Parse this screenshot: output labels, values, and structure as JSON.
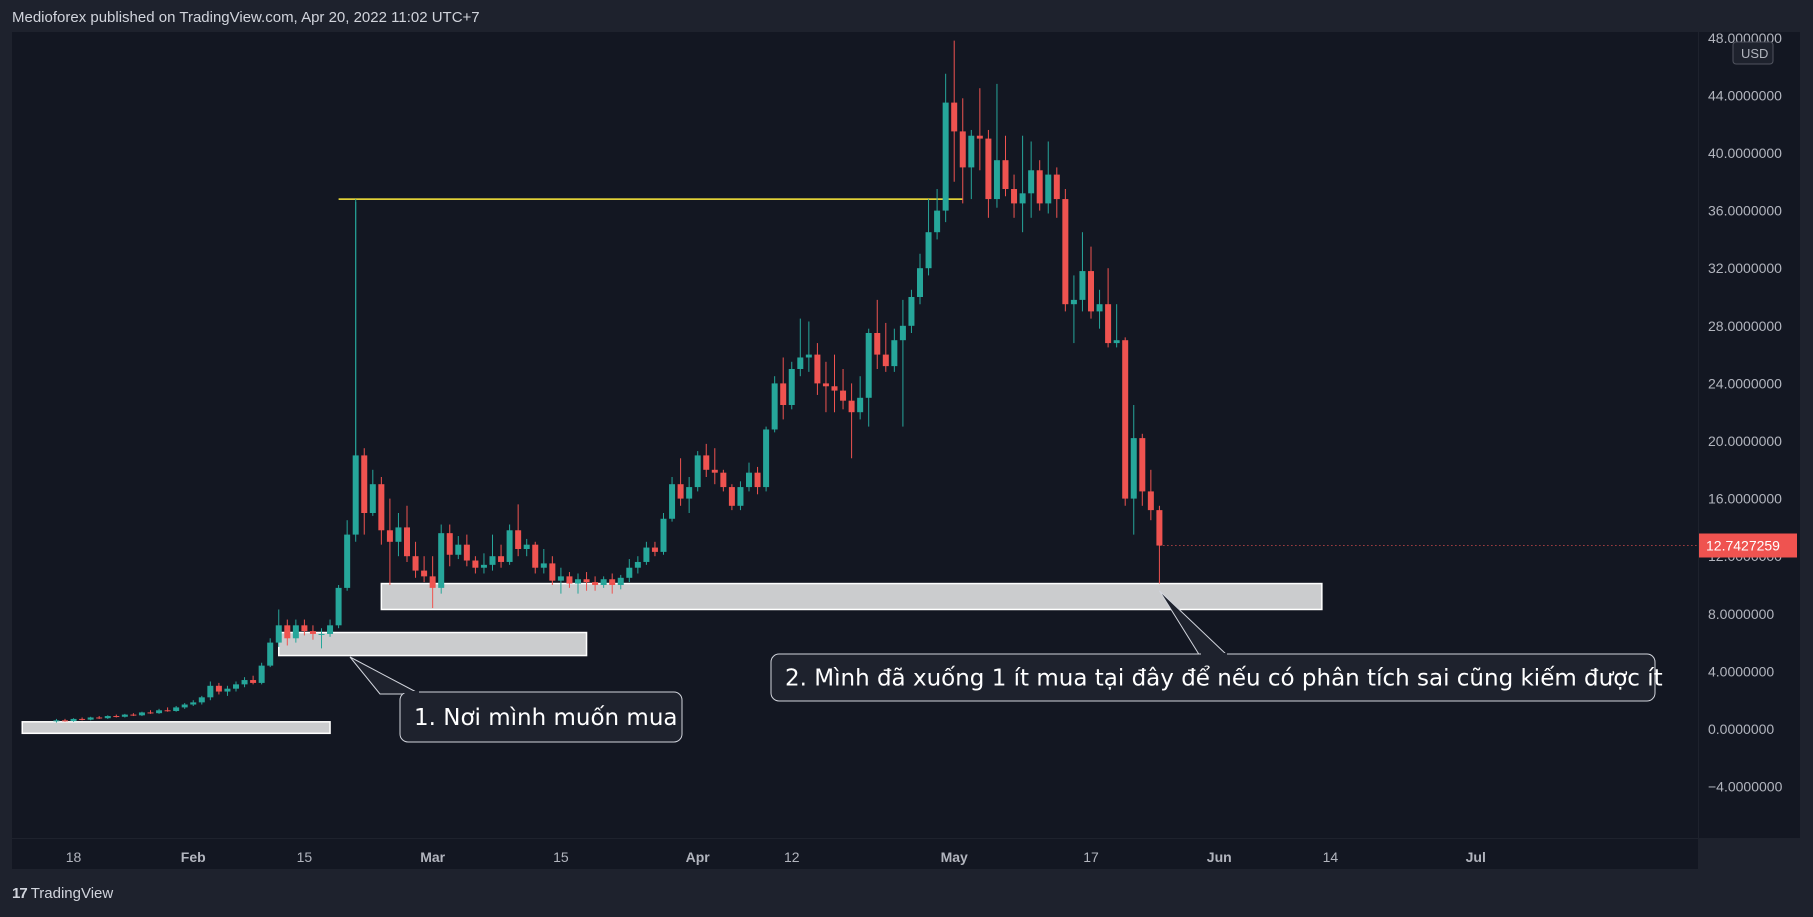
{
  "header": {
    "publisher_line": "Medioforex published on TradingView.com, Apr 20, 2022 11:02 UTC+7"
  },
  "footer": {
    "logo_glyph": "17",
    "brand": "TradingView"
  },
  "colors": {
    "up": "#26a69a",
    "down": "#ef5350",
    "level_line": "#ffeb3b",
    "price_tag": "#ef5350",
    "background": "#131722",
    "panel": "#1e222d"
  },
  "chart_data": {
    "type": "candlestick",
    "currency": "USD",
    "current_price_label": "12.7427259",
    "current_price": 12.7427259,
    "ylim": [
      -8,
      48
    ],
    "y_ticks": [
      {
        "v": 48,
        "label": "48.0000000"
      },
      {
        "v": 44,
        "label": "44.0000000"
      },
      {
        "v": 40,
        "label": "40.0000000"
      },
      {
        "v": 36,
        "label": "36.0000000"
      },
      {
        "v": 32,
        "label": "32.0000000"
      },
      {
        "v": 28,
        "label": "28.0000000"
      },
      {
        "v": 24,
        "label": "24.0000000"
      },
      {
        "v": 20,
        "label": "20.0000000"
      },
      {
        "v": 16,
        "label": "16.0000000"
      },
      {
        "v": 12,
        "label": "12.0000000"
      },
      {
        "v": 8,
        "label": "8.0000000"
      },
      {
        "v": 4,
        "label": "4.0000000"
      },
      {
        "v": 0,
        "label": "0.0000000"
      },
      {
        "v": -4,
        "label": "−4.0000000"
      }
    ],
    "x_ticks": [
      {
        "day": -12,
        "label": "18"
      },
      {
        "day": 2,
        "label": "Feb"
      },
      {
        "day": 15,
        "label": "15"
      },
      {
        "day": 30,
        "label": "Mar"
      },
      {
        "day": 45,
        "label": "15"
      },
      {
        "day": 61,
        "label": "Apr"
      },
      {
        "day": 72,
        "label": "12"
      },
      {
        "day": 91,
        "label": "May"
      },
      {
        "day": 107,
        "label": "17"
      },
      {
        "day": 122,
        "label": "Jun"
      },
      {
        "day": 135,
        "label": "14"
      },
      {
        "day": 152,
        "label": "Jul"
      }
    ],
    "xlim": [
      -18,
      155
    ],
    "candles": [
      {
        "d": -14,
        "o": 0.55,
        "h": 0.7,
        "l": 0.45,
        "c": 0.6
      },
      {
        "d": -13,
        "o": 0.6,
        "h": 0.7,
        "l": 0.5,
        "c": 0.55
      },
      {
        "d": -12,
        "o": 0.55,
        "h": 0.75,
        "l": 0.5,
        "c": 0.7
      },
      {
        "d": -11,
        "o": 0.7,
        "h": 0.8,
        "l": 0.6,
        "c": 0.65
      },
      {
        "d": -10,
        "o": 0.65,
        "h": 0.85,
        "l": 0.6,
        "c": 0.8
      },
      {
        "d": -9,
        "o": 0.8,
        "h": 0.9,
        "l": 0.7,
        "c": 0.75
      },
      {
        "d": -8,
        "o": 0.75,
        "h": 0.95,
        "l": 0.7,
        "c": 0.9
      },
      {
        "d": -7,
        "o": 0.9,
        "h": 1.0,
        "l": 0.8,
        "c": 0.85
      },
      {
        "d": -6,
        "o": 0.85,
        "h": 1.05,
        "l": 0.8,
        "c": 1.0
      },
      {
        "d": -5,
        "o": 1.0,
        "h": 1.1,
        "l": 0.9,
        "c": 0.95
      },
      {
        "d": -4,
        "o": 0.95,
        "h": 1.2,
        "l": 0.9,
        "c": 1.15
      },
      {
        "d": -3,
        "o": 1.15,
        "h": 1.3,
        "l": 1.05,
        "c": 1.1
      },
      {
        "d": -2,
        "o": 1.1,
        "h": 1.4,
        "l": 1.05,
        "c": 1.3
      },
      {
        "d": -1,
        "o": 1.3,
        "h": 1.5,
        "l": 1.2,
        "c": 1.25
      },
      {
        "d": 0,
        "o": 1.25,
        "h": 1.6,
        "l": 1.2,
        "c": 1.5
      },
      {
        "d": 1,
        "o": 1.5,
        "h": 1.8,
        "l": 1.4,
        "c": 1.7
      },
      {
        "d": 2,
        "o": 1.7,
        "h": 2.0,
        "l": 1.6,
        "c": 1.85
      },
      {
        "d": 3,
        "o": 1.85,
        "h": 2.3,
        "l": 1.7,
        "c": 2.2
      },
      {
        "d": 4,
        "o": 2.2,
        "h": 3.3,
        "l": 2.0,
        "c": 3.0
      },
      {
        "d": 5,
        "o": 3.0,
        "h": 3.2,
        "l": 2.4,
        "c": 2.6
      },
      {
        "d": 6,
        "o": 2.6,
        "h": 3.0,
        "l": 2.3,
        "c": 2.8
      },
      {
        "d": 7,
        "o": 2.8,
        "h": 3.3,
        "l": 2.6,
        "c": 3.1
      },
      {
        "d": 8,
        "o": 3.1,
        "h": 3.6,
        "l": 2.9,
        "c": 3.4
      },
      {
        "d": 9,
        "o": 3.4,
        "h": 3.7,
        "l": 3.1,
        "c": 3.2
      },
      {
        "d": 10,
        "o": 3.2,
        "h": 4.6,
        "l": 3.1,
        "c": 4.4
      },
      {
        "d": 11,
        "o": 4.4,
        "h": 6.3,
        "l": 4.3,
        "c": 6.0
      },
      {
        "d": 12,
        "o": 6.0,
        "h": 8.3,
        "l": 5.7,
        "c": 7.2
      },
      {
        "d": 13,
        "o": 7.2,
        "h": 7.6,
        "l": 5.8,
        "c": 6.3
      },
      {
        "d": 14,
        "o": 6.3,
        "h": 7.6,
        "l": 6.0,
        "c": 7.2
      },
      {
        "d": 15,
        "o": 7.2,
        "h": 7.6,
        "l": 6.5,
        "c": 6.8
      },
      {
        "d": 16,
        "o": 6.8,
        "h": 7.2,
        "l": 6.2,
        "c": 6.6
      },
      {
        "d": 17,
        "o": 6.6,
        "h": 7.0,
        "l": 5.6,
        "c": 6.6
      },
      {
        "d": 18,
        "o": 6.6,
        "h": 7.6,
        "l": 6.4,
        "c": 7.2
      },
      {
        "d": 19,
        "o": 7.2,
        "h": 10.0,
        "l": 7.0,
        "c": 9.8
      },
      {
        "d": 20,
        "o": 9.8,
        "h": 14.5,
        "l": 9.6,
        "c": 13.5
      },
      {
        "d": 21,
        "o": 13.5,
        "h": 36.6,
        "l": 13.0,
        "c": 19.0
      },
      {
        "d": 22,
        "o": 19.0,
        "h": 19.5,
        "l": 13.5,
        "c": 15.0
      },
      {
        "d": 23,
        "o": 15.0,
        "h": 18.0,
        "l": 14.8,
        "c": 17.0
      },
      {
        "d": 24,
        "o": 17.0,
        "h": 17.5,
        "l": 12.8,
        "c": 13.8
      },
      {
        "d": 25,
        "o": 13.8,
        "h": 16.0,
        "l": 10.0,
        "c": 13.0
      },
      {
        "d": 26,
        "o": 13.0,
        "h": 15.0,
        "l": 12.0,
        "c": 14.0
      },
      {
        "d": 27,
        "o": 14.0,
        "h": 15.5,
        "l": 11.6,
        "c": 12.0
      },
      {
        "d": 28,
        "o": 12.0,
        "h": 13.0,
        "l": 10.5,
        "c": 11.0
      },
      {
        "d": 29,
        "o": 11.0,
        "h": 12.0,
        "l": 10.2,
        "c": 10.6
      },
      {
        "d": 30,
        "o": 10.6,
        "h": 12.0,
        "l": 8.4,
        "c": 9.8
      },
      {
        "d": 31,
        "o": 9.8,
        "h": 14.2,
        "l": 9.4,
        "c": 13.6
      },
      {
        "d": 32,
        "o": 13.6,
        "h": 14.2,
        "l": 11.3,
        "c": 12.1
      },
      {
        "d": 33,
        "o": 12.1,
        "h": 13.4,
        "l": 11.8,
        "c": 12.8
      },
      {
        "d": 34,
        "o": 12.8,
        "h": 13.5,
        "l": 11.3,
        "c": 11.7
      },
      {
        "d": 35,
        "o": 11.7,
        "h": 12.0,
        "l": 10.8,
        "c": 11.2
      },
      {
        "d": 36,
        "o": 11.2,
        "h": 12.2,
        "l": 10.8,
        "c": 11.4
      },
      {
        "d": 37,
        "o": 11.4,
        "h": 13.5,
        "l": 11.0,
        "c": 12.0
      },
      {
        "d": 38,
        "o": 12.0,
        "h": 12.8,
        "l": 11.2,
        "c": 11.6
      },
      {
        "d": 39,
        "o": 11.6,
        "h": 14.2,
        "l": 11.4,
        "c": 13.8
      },
      {
        "d": 40,
        "o": 13.8,
        "h": 15.6,
        "l": 12.0,
        "c": 12.5
      },
      {
        "d": 41,
        "o": 12.5,
        "h": 13.2,
        "l": 12.0,
        "c": 12.8
      },
      {
        "d": 42,
        "o": 12.8,
        "h": 13.0,
        "l": 10.8,
        "c": 11.2
      },
      {
        "d": 43,
        "o": 11.2,
        "h": 12.5,
        "l": 10.8,
        "c": 11.5
      },
      {
        "d": 44,
        "o": 11.5,
        "h": 12.0,
        "l": 10.0,
        "c": 10.3
      },
      {
        "d": 45,
        "o": 10.3,
        "h": 11.2,
        "l": 9.4,
        "c": 10.6
      },
      {
        "d": 46,
        "o": 10.6,
        "h": 10.9,
        "l": 9.8,
        "c": 10.1
      },
      {
        "d": 47,
        "o": 10.1,
        "h": 10.8,
        "l": 9.4,
        "c": 10.4
      },
      {
        "d": 48,
        "o": 10.4,
        "h": 10.9,
        "l": 9.6,
        "c": 10.2
      },
      {
        "d": 49,
        "o": 10.2,
        "h": 10.6,
        "l": 9.6,
        "c": 10.0
      },
      {
        "d": 50,
        "o": 10.0,
        "h": 10.6,
        "l": 9.8,
        "c": 10.4
      },
      {
        "d": 51,
        "o": 10.4,
        "h": 10.8,
        "l": 9.4,
        "c": 10.0
      },
      {
        "d": 52,
        "o": 10.0,
        "h": 10.7,
        "l": 9.7,
        "c": 10.5
      },
      {
        "d": 53,
        "o": 10.5,
        "h": 11.8,
        "l": 10.2,
        "c": 11.2
      },
      {
        "d": 54,
        "o": 11.2,
        "h": 12.0,
        "l": 10.8,
        "c": 11.6
      },
      {
        "d": 55,
        "o": 11.6,
        "h": 13.0,
        "l": 11.4,
        "c": 12.6
      },
      {
        "d": 56,
        "o": 12.6,
        "h": 13.0,
        "l": 12.0,
        "c": 12.3
      },
      {
        "d": 57,
        "o": 12.3,
        "h": 15.0,
        "l": 12.1,
        "c": 14.6
      },
      {
        "d": 58,
        "o": 14.6,
        "h": 17.5,
        "l": 14.4,
        "c": 17.0
      },
      {
        "d": 59,
        "o": 17.0,
        "h": 18.8,
        "l": 15.5,
        "c": 16.0
      },
      {
        "d": 60,
        "o": 16.0,
        "h": 17.5,
        "l": 15.0,
        "c": 16.8
      },
      {
        "d": 61,
        "o": 16.8,
        "h": 19.3,
        "l": 16.5,
        "c": 19.0
      },
      {
        "d": 62,
        "o": 19.0,
        "h": 19.8,
        "l": 17.5,
        "c": 18.0
      },
      {
        "d": 63,
        "o": 18.0,
        "h": 19.5,
        "l": 17.0,
        "c": 17.8
      },
      {
        "d": 64,
        "o": 17.8,
        "h": 18.0,
        "l": 16.5,
        "c": 16.8
      },
      {
        "d": 65,
        "o": 16.8,
        "h": 17.0,
        "l": 15.2,
        "c": 15.5
      },
      {
        "d": 66,
        "o": 15.5,
        "h": 17.2,
        "l": 15.2,
        "c": 16.8
      },
      {
        "d": 67,
        "o": 16.8,
        "h": 18.5,
        "l": 16.5,
        "c": 17.8
      },
      {
        "d": 68,
        "o": 17.8,
        "h": 18.2,
        "l": 16.3,
        "c": 16.8
      },
      {
        "d": 69,
        "o": 16.8,
        "h": 21.0,
        "l": 16.5,
        "c": 20.8
      },
      {
        "d": 70,
        "o": 20.8,
        "h": 24.5,
        "l": 20.6,
        "c": 24.0
      },
      {
        "d": 71,
        "o": 24.0,
        "h": 25.8,
        "l": 21.5,
        "c": 22.5
      },
      {
        "d": 72,
        "o": 22.5,
        "h": 25.5,
        "l": 22.2,
        "c": 25.0
      },
      {
        "d": 73,
        "o": 25.0,
        "h": 28.5,
        "l": 24.5,
        "c": 25.8
      },
      {
        "d": 74,
        "o": 25.8,
        "h": 28.3,
        "l": 24.8,
        "c": 26.0
      },
      {
        "d": 75,
        "o": 26.0,
        "h": 26.8,
        "l": 23.2,
        "c": 24.0
      },
      {
        "d": 76,
        "o": 24.0,
        "h": 25.5,
        "l": 22.0,
        "c": 23.8
      },
      {
        "d": 77,
        "o": 23.8,
        "h": 26.0,
        "l": 22.0,
        "c": 23.5
      },
      {
        "d": 78,
        "o": 23.5,
        "h": 25.0,
        "l": 22.2,
        "c": 22.8
      },
      {
        "d": 79,
        "o": 22.8,
        "h": 24.0,
        "l": 18.8,
        "c": 22.0
      },
      {
        "d": 80,
        "o": 22.0,
        "h": 24.5,
        "l": 21.5,
        "c": 23.0
      },
      {
        "d": 81,
        "o": 23.0,
        "h": 27.8,
        "l": 21.0,
        "c": 27.5
      },
      {
        "d": 82,
        "o": 27.5,
        "h": 29.8,
        "l": 25.0,
        "c": 26.0
      },
      {
        "d": 83,
        "o": 26.0,
        "h": 28.2,
        "l": 24.8,
        "c": 25.2
      },
      {
        "d": 84,
        "o": 25.2,
        "h": 27.8,
        "l": 24.8,
        "c": 27.0
      },
      {
        "d": 85,
        "o": 27.0,
        "h": 29.8,
        "l": 21.0,
        "c": 28.0
      },
      {
        "d": 86,
        "o": 28.0,
        "h": 30.5,
        "l": 27.5,
        "c": 30.0
      },
      {
        "d": 87,
        "o": 30.0,
        "h": 33.0,
        "l": 29.5,
        "c": 32.0
      },
      {
        "d": 88,
        "o": 32.0,
        "h": 36.8,
        "l": 31.5,
        "c": 34.5
      },
      {
        "d": 89,
        "o": 34.5,
        "h": 37.5,
        "l": 34.0,
        "c": 36.0
      },
      {
        "d": 90,
        "o": 36.0,
        "h": 45.5,
        "l": 35.2,
        "c": 43.5
      },
      {
        "d": 91,
        "o": 43.5,
        "h": 47.8,
        "l": 38.0,
        "c": 41.5
      },
      {
        "d": 92,
        "o": 41.5,
        "h": 43.8,
        "l": 36.5,
        "c": 39.0
      },
      {
        "d": 93,
        "o": 39.0,
        "h": 41.6,
        "l": 36.8,
        "c": 41.2
      },
      {
        "d": 94,
        "o": 41.2,
        "h": 44.5,
        "l": 38.8,
        "c": 41.0
      },
      {
        "d": 95,
        "o": 41.0,
        "h": 41.6,
        "l": 35.5,
        "c": 36.8
      },
      {
        "d": 96,
        "o": 36.8,
        "h": 44.8,
        "l": 36.2,
        "c": 39.5
      },
      {
        "d": 97,
        "o": 39.5,
        "h": 41.2,
        "l": 37.0,
        "c": 37.5
      },
      {
        "d": 98,
        "o": 37.5,
        "h": 38.5,
        "l": 35.5,
        "c": 36.5
      },
      {
        "d": 99,
        "o": 36.5,
        "h": 41.2,
        "l": 34.5,
        "c": 37.2
      },
      {
        "d": 100,
        "o": 37.2,
        "h": 40.8,
        "l": 35.5,
        "c": 38.8
      },
      {
        "d": 101,
        "o": 38.8,
        "h": 39.5,
        "l": 36.0,
        "c": 36.5
      },
      {
        "d": 102,
        "o": 36.5,
        "h": 40.8,
        "l": 35.8,
        "c": 38.5
      },
      {
        "d": 103,
        "o": 38.5,
        "h": 39.0,
        "l": 35.5,
        "c": 36.8
      },
      {
        "d": 104,
        "o": 36.8,
        "h": 37.5,
        "l": 29.0,
        "c": 29.5
      },
      {
        "d": 105,
        "o": 29.5,
        "h": 31.5,
        "l": 26.8,
        "c": 29.8
      },
      {
        "d": 106,
        "o": 29.8,
        "h": 34.5,
        "l": 29.0,
        "c": 31.8
      },
      {
        "d": 107,
        "o": 31.8,
        "h": 33.5,
        "l": 28.5,
        "c": 29.0
      },
      {
        "d": 108,
        "o": 29.0,
        "h": 30.5,
        "l": 27.8,
        "c": 29.5
      },
      {
        "d": 109,
        "o": 29.5,
        "h": 32.0,
        "l": 26.5,
        "c": 26.8
      },
      {
        "d": 110,
        "o": 26.8,
        "h": 29.5,
        "l": 26.5,
        "c": 27.0
      },
      {
        "d": 111,
        "o": 27.0,
        "h": 27.2,
        "l": 15.5,
        "c": 16.0
      },
      {
        "d": 112,
        "o": 16.0,
        "h": 22.5,
        "l": 13.5,
        "c": 20.2
      },
      {
        "d": 113,
        "o": 20.2,
        "h": 20.5,
        "l": 15.5,
        "c": 16.5
      },
      {
        "d": 114,
        "o": 16.5,
        "h": 18.0,
        "l": 14.5,
        "c": 15.2
      },
      {
        "d": 115,
        "o": 15.2,
        "h": 15.5,
        "l": 10.1,
        "c": 12.74
      }
    ],
    "zones": [
      {
        "d1": -18,
        "d2": 18,
        "lo": -0.3,
        "hi": 0.5
      },
      {
        "d1": 12,
        "d2": 48,
        "lo": 5.1,
        "hi": 6.7
      },
      {
        "d1": 24,
        "d2": 134,
        "lo": 8.3,
        "hi": 10.1
      }
    ],
    "level_line": {
      "d1": 19,
      "d2": 92,
      "value": 36.8
    },
    "vertical_line": {
      "day": 21,
      "from": 36.8,
      "to": 14.0
    },
    "annotations": [
      {
        "id": "ann-1",
        "text": "1. Nơi mình muốn mua"
      },
      {
        "id": "ann-2",
        "text": "2. Mình đã xuống 1 ít mua tại đây để nếu có phân tích sai cũng kiếm được ít"
      }
    ]
  }
}
